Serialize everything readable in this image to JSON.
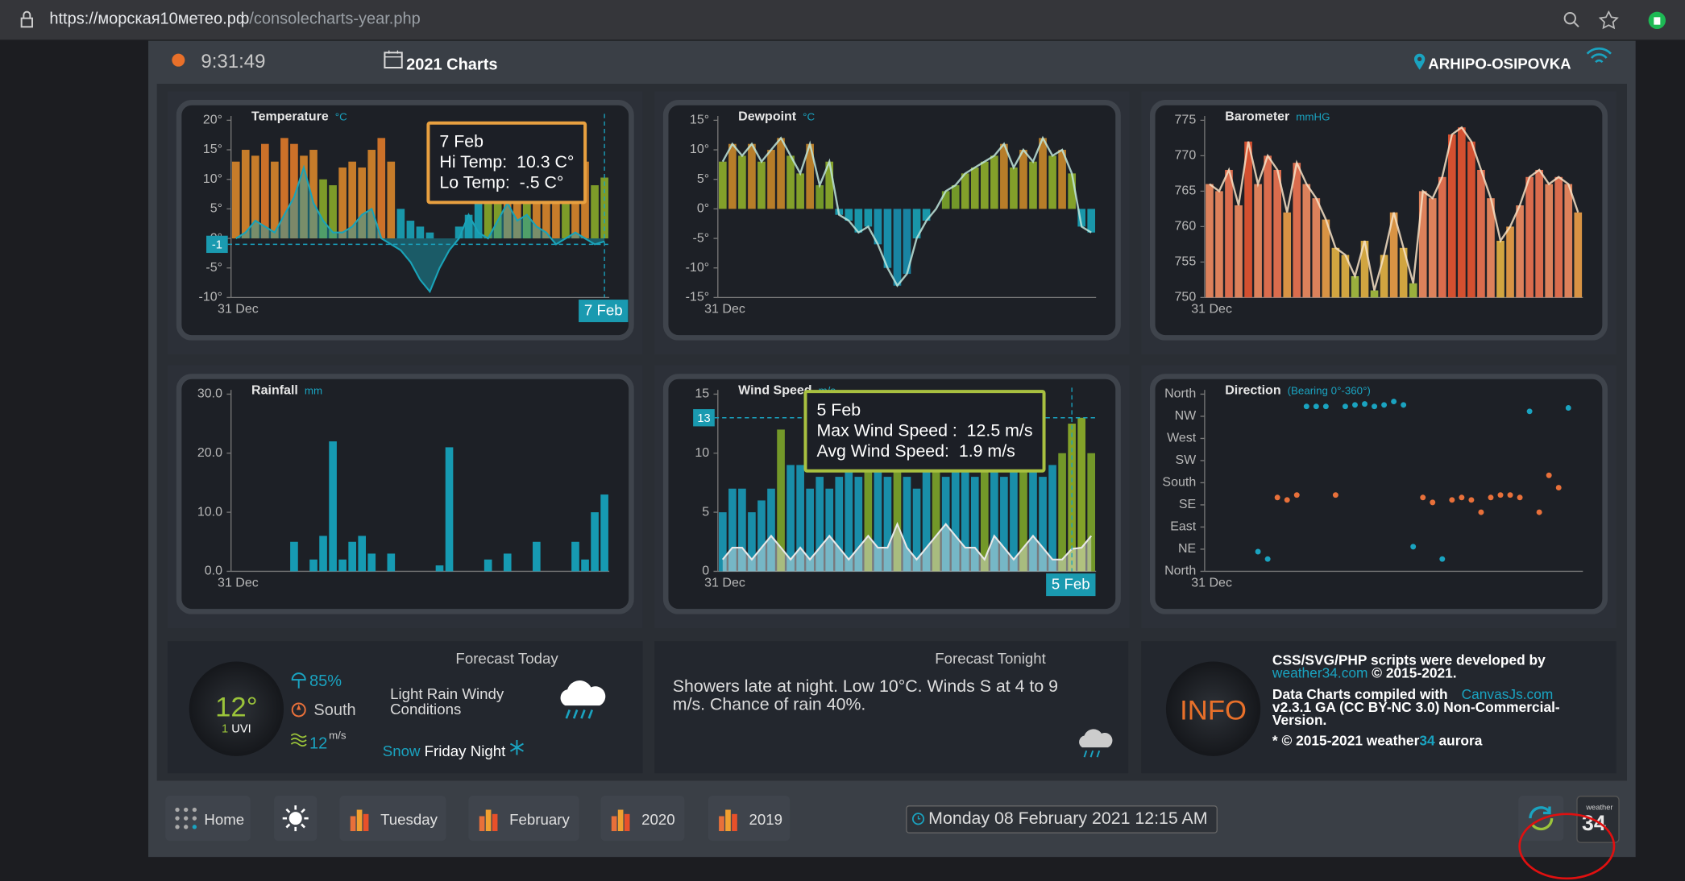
{
  "browser": {
    "url_host": "https://морская10метео.рф",
    "url_path": "/consolecharts-year.php"
  },
  "header": {
    "time": "9:31:49",
    "title": "2021 Charts",
    "location": "ARHIPO-OSIPOVKA"
  },
  "chart_data": [
    {
      "type": "bar",
      "title": "Temperature",
      "unit": "°C",
      "categories": [
        "31 Dec",
        null,
        null,
        null,
        null,
        null,
        null,
        null,
        null,
        null,
        null,
        null,
        null,
        null,
        null,
        null,
        null,
        null,
        null,
        null,
        null,
        null,
        null,
        null,
        null,
        null,
        null,
        null,
        null,
        null,
        null,
        null,
        null,
        null,
        null,
        null,
        null,
        null,
        "7 Feb"
      ],
      "ylim": [
        -10,
        20
      ],
      "yticks": [
        {
          "value": -10,
          "label": "-10°"
        },
        {
          "value": -5,
          "label": "-5°"
        },
        {
          "value": 0,
          "label": "0°"
        },
        {
          "value": 5,
          "label": "5°"
        },
        {
          "value": 10,
          "label": "10°"
        },
        {
          "value": 15,
          "label": "15°"
        },
        {
          "value": 20,
          "label": "20°"
        }
      ],
      "colors": [
        "#1aa3b8",
        "#1aa3b8",
        "#1aa3b8",
        "#1aa3b8",
        "#88a82a",
        "#d9862b",
        "#e07a2a"
      ],
      "series": [
        {
          "type": "bar",
          "values": [
            13,
            15,
            14,
            16,
            13,
            17,
            16,
            14,
            15,
            10,
            9,
            12,
            13,
            12,
            15,
            17,
            13,
            5,
            3,
            2,
            1,
            0,
            0,
            2,
            4,
            7,
            9,
            11,
            15,
            12,
            10,
            12,
            13,
            15,
            11,
            12,
            13,
            9,
            10.3
          ]
        },
        {
          "type": "area",
          "color": "#1aa3b8",
          "values": [
            0,
            1,
            3,
            2,
            1,
            4,
            7,
            12,
            6,
            3,
            1,
            1,
            2,
            4,
            5,
            0,
            -1,
            -2,
            -4,
            -7,
            -9,
            -5,
            -2,
            0,
            4,
            1,
            0,
            3,
            6,
            3,
            4,
            2,
            1,
            -1,
            0,
            1,
            0,
            -1,
            -0.5
          ]
        }
      ],
      "ref_line": -1,
      "tooltip": [
        "7 Feb",
        "Hi Temp:  10.3 C°",
        "Lo Temp:  -.5 C°"
      ]
    },
    {
      "type": "bar",
      "title": "Dewpoint",
      "unit": "°C",
      "categories": [
        "31 Dec",
        null,
        null,
        null,
        null,
        null,
        null,
        null,
        null,
        null,
        null,
        null,
        null,
        null,
        null,
        null,
        null,
        null,
        null,
        null,
        null,
        null,
        null,
        null,
        null,
        null,
        null,
        null,
        null,
        null,
        null,
        null,
        null,
        null,
        null,
        null,
        null,
        null,
        null
      ],
      "ylim": [
        -15,
        15
      ],
      "yticks": [
        {
          "value": -15,
          "label": "-15°"
        },
        {
          "value": -10,
          "label": "-10°"
        },
        {
          "value": -5,
          "label": "-5°"
        },
        {
          "value": 0,
          "label": "0°"
        },
        {
          "value": 5,
          "label": "5°"
        },
        {
          "value": 10,
          "label": "10°"
        },
        {
          "value": 15,
          "label": "15°"
        }
      ],
      "colors": [
        "#1a8fb0",
        "#1a9ab8",
        "#1aa3b8",
        "#7da52a",
        "#8fae2b",
        "#c9872a"
      ],
      "overlay_line_color": "#bfe6dc",
      "series": [
        {
          "type": "bar",
          "values": [
            8,
            11,
            9,
            11,
            8,
            10,
            12,
            9,
            6,
            11,
            4,
            8,
            -1,
            -2,
            -4,
            -3,
            -6,
            -10,
            -13,
            -11,
            -5,
            -2,
            0,
            3,
            4,
            6,
            7,
            8,
            9,
            11,
            7,
            10,
            8,
            12,
            9,
            10,
            6,
            -3,
            -4
          ]
        }
      ]
    },
    {
      "type": "bar",
      "title": "Barometer",
      "unit": "mmHG",
      "categories": [
        "31 Dec",
        null,
        null,
        null,
        null,
        null,
        null,
        null,
        null,
        null,
        null,
        null,
        null,
        null,
        null,
        null,
        null,
        null,
        null,
        null,
        null,
        null,
        null,
        null,
        null,
        null,
        null,
        null,
        null,
        null,
        null,
        null,
        null,
        null,
        null,
        null,
        null,
        null,
        null
      ],
      "ylim": [
        750,
        775
      ],
      "yticks": [
        750,
        755,
        760,
        765,
        770,
        775
      ],
      "colors": [
        "#a8c040",
        "#e6b444",
        "#eda048",
        "#f28c62",
        "#ef7452",
        "#e85532"
      ],
      "overlay_line_color": "#f7e2c6",
      "series": [
        {
          "type": "bar",
          "values": [
            766,
            765,
            768,
            763,
            772,
            766,
            770,
            768,
            762,
            769,
            766,
            764,
            761,
            757,
            756,
            753,
            758,
            751,
            756,
            762,
            757,
            752,
            765,
            764,
            767,
            773,
            774,
            772,
            768,
            764,
            758,
            760,
            763,
            767,
            768,
            766,
            767,
            766,
            762
          ]
        }
      ]
    },
    {
      "type": "bar",
      "title": "Rainfall",
      "unit": "mm",
      "categories": [
        "31 Dec",
        null,
        null,
        null,
        null,
        null,
        null,
        null,
        null,
        null,
        null,
        null,
        null,
        null,
        null,
        null,
        null,
        null,
        null,
        null,
        null,
        null,
        null,
        null,
        null,
        null,
        null,
        null,
        null,
        null,
        null,
        null,
        null,
        null,
        null,
        null,
        null,
        null,
        null
      ],
      "ylim": [
        0,
        30
      ],
      "yticks": [
        {
          "value": 0,
          "label": "0.0"
        },
        {
          "value": 10,
          "label": "10.0"
        },
        {
          "value": 20,
          "label": "20.0"
        },
        {
          "value": 30,
          "label": "30.0"
        }
      ],
      "colors": [
        "#16a7c2"
      ],
      "series": [
        {
          "type": "bar",
          "values": [
            0,
            0,
            0,
            0,
            0,
            0,
            5,
            0,
            2,
            6,
            22,
            2,
            5,
            6,
            3,
            0,
            3,
            0,
            0,
            0,
            0,
            1,
            21,
            0,
            0,
            0,
            2,
            0,
            3,
            0,
            0,
            5,
            0,
            0,
            0,
            5,
            2,
            10,
            13
          ]
        }
      ]
    },
    {
      "type": "bar",
      "title": "Wind Speed",
      "unit": "m/s",
      "categories": [
        "31 Dec",
        null,
        null,
        null,
        null,
        null,
        null,
        null,
        null,
        null,
        null,
        null,
        null,
        null,
        null,
        null,
        null,
        null,
        null,
        null,
        null,
        null,
        null,
        null,
        null,
        null,
        null,
        null,
        null,
        null,
        null,
        null,
        null,
        null,
        null,
        null,
        "5 Feb",
        null,
        null
      ],
      "ylim": [
        0,
        15
      ],
      "yticks": [
        0,
        5,
        10,
        15
      ],
      "colors": [
        "#1a9ab8",
        "#1a9ab8",
        "#1a9ab8",
        "#1a9ab8",
        "#7da52a",
        "#8fb02a"
      ],
      "series": [
        {
          "type": "bar",
          "values": [
            5,
            7,
            7,
            5,
            6,
            7,
            12,
            9,
            9,
            7,
            8,
            7,
            8,
            9,
            8,
            10,
            9,
            8,
            10,
            8,
            7,
            9,
            11,
            8,
            9,
            9,
            8,
            10,
            9,
            8,
            9,
            10,
            9,
            8,
            9,
            10,
            12.5,
            13,
            10
          ]
        },
        {
          "type": "area",
          "color": "#e8e8e8",
          "values": [
            1,
            2,
            2,
            1,
            2,
            3,
            2,
            1,
            2,
            1,
            2,
            3,
            2,
            1,
            2,
            3,
            2,
            2,
            4,
            2,
            1,
            2,
            3,
            4,
            3,
            2,
            2,
            1,
            3,
            2,
            1,
            2,
            3,
            2,
            1,
            1,
            1.9,
            2,
            3
          ]
        }
      ],
      "ref_line": 13,
      "tooltip": [
        "5 Feb",
        "Max Wind Speed :  12.5 m/s",
        "Avg Wind Speed:  1.9 m/s"
      ]
    },
    {
      "type": "scatter",
      "title": "Direction",
      "unit": "(Bearing 0°-360°)",
      "categories": [
        "31 Dec",
        null,
        null,
        null,
        null,
        null,
        null,
        null,
        null,
        null,
        null,
        null,
        null,
        null,
        null,
        null,
        null,
        null,
        null,
        null,
        null,
        null,
        null,
        null,
        null,
        null,
        null,
        null,
        null,
        null,
        null,
        null,
        null,
        null,
        null,
        null,
        null,
        null,
        null
      ],
      "ylim": [
        0,
        360
      ],
      "yticks": [
        {
          "value": 0,
          "label": "North"
        },
        {
          "value": 45,
          "label": "NE"
        },
        {
          "value": 90,
          "label": "East"
        },
        {
          "value": 135,
          "label": "SE"
        },
        {
          "value": 180,
          "label": "South"
        },
        {
          "value": 225,
          "label": "SW"
        },
        {
          "value": 270,
          "label": "West"
        },
        {
          "value": 315,
          "label": "NW"
        },
        {
          "value": 360,
          "label": "North"
        }
      ],
      "colors": [
        "#1aa3c0",
        "#e8703a",
        "#e8703a",
        "#1aa3c0"
      ],
      "series": [
        {
          "values": [
            null,
            null,
            null,
            null,
            null,
            40,
            25,
            150,
            145,
            155,
            335,
            335,
            335,
            155,
            335,
            338,
            340,
            335,
            338,
            345,
            338,
            50,
            150,
            140,
            25,
            145,
            150,
            145,
            120,
            150,
            155,
            155,
            150,
            325,
            120,
            195,
            170,
            332,
            null
          ]
        }
      ]
    }
  ],
  "forecast_today": {
    "title": "Forecast Today",
    "temperature": "12°",
    "uvi": "1",
    "uvi_label": "UVI",
    "humidity": "85%",
    "wind_direction": "South",
    "wind_speed": "12",
    "wind_unit": "m/s",
    "conditions": "Light Rain Windy Conditions",
    "snow": "Snow",
    "snow_when": "Friday Night"
  },
  "forecast_tonight": {
    "title": "Forecast Tonight",
    "text": "Showers late at night. Low 10°C. Winds S at 4 to 9 m/s. Chance of rain 40%."
  },
  "info": {
    "badge": "INFO",
    "line1": "CSS/SVG/PHP scripts were developed by",
    "link1": "weather34.com",
    "line2": "© 2015-2021.",
    "line3": "Data Charts compiled with",
    "link2": "CanvasJs.com",
    "line4": "v2.3.1 GA (CC BY-NC 3.0) Non-Commercial-Version.",
    "line5": "* © 2015-2021 weather",
    "line5_number": "34",
    "line5_end": "aurora"
  },
  "footer": {
    "buttons": [
      "Home",
      "Tuesday",
      "February",
      "2020",
      "2019"
    ],
    "date": "Monday 08 February 2021 12:15 AM",
    "logo_text": "weather",
    "logo_number": "34"
  }
}
